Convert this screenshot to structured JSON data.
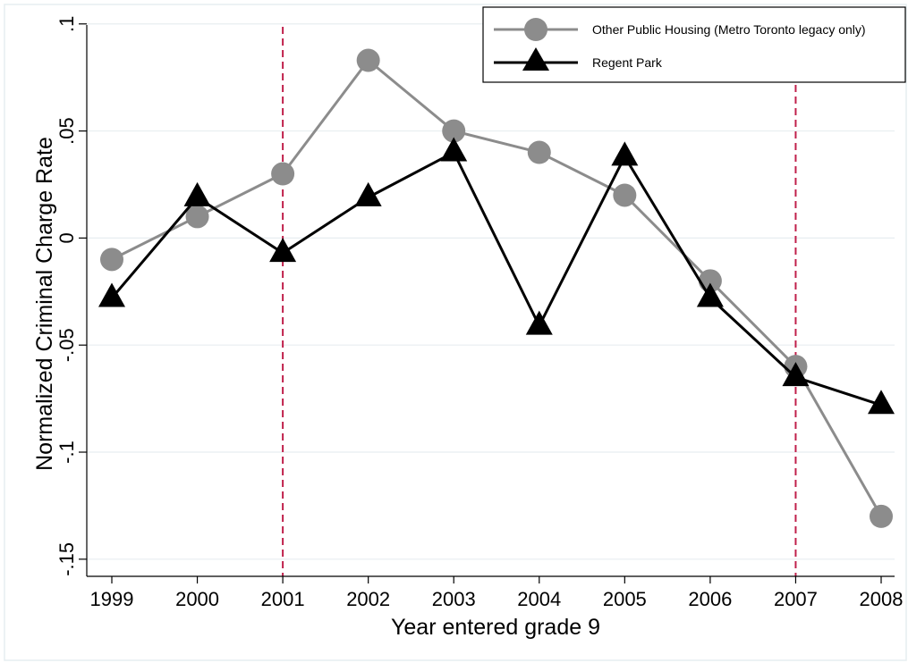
{
  "chart_data": {
    "type": "line",
    "xlabel": "Year entered grade 9",
    "ylabel": "Normalized Criminal Charge Rate",
    "x": [
      1999,
      2000,
      2001,
      2002,
      2003,
      2004,
      2005,
      2006,
      2007,
      2008
    ],
    "x_tick_labels": [
      "1999",
      "2000",
      "2001",
      "2002",
      "2003",
      "2004",
      "2005",
      "2006",
      "2007",
      "2008"
    ],
    "y_ticks": [
      0.1,
      0.05,
      0,
      -0.05,
      -0.1,
      -0.15
    ],
    "y_tick_labels": [
      ".1",
      ".05",
      "0",
      "-.05",
      "-.1",
      "-.15"
    ],
    "ylim": [
      -0.158,
      0.107
    ],
    "grid": true,
    "legend_position": "top-right",
    "vertical_reference_lines": [
      2001,
      2007
    ],
    "series": [
      {
        "name": "Other Public Housing (Metro Toronto legacy only)",
        "marker": "circle",
        "color": "#8c8c8c",
        "values": [
          -0.01,
          0.01,
          0.03,
          0.083,
          0.05,
          0.04,
          0.02,
          -0.02,
          -0.06,
          -0.13
        ]
      },
      {
        "name": "Regent Park",
        "marker": "triangle",
        "color": "#000000",
        "values": [
          -0.028,
          0.019,
          -0.007,
          0.019,
          0.04,
          -0.041,
          0.038,
          -0.028,
          -0.065,
          -0.078
        ]
      }
    ],
    "colors": {
      "reference_line": "#c0204b",
      "grid": "#e8eef0"
    }
  }
}
